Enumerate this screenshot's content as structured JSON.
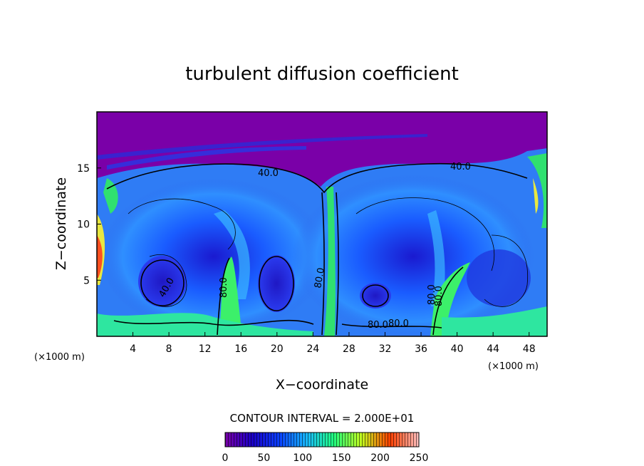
{
  "chart_data": {
    "type": "heatmap",
    "title": "turbulent diffusion coefficient",
    "xlabel": "X−coordinate",
    "ylabel": "Z−coordinate",
    "x_unit": "(×1000 m)",
    "x_unit_right": "(×1000 m)",
    "xlim": [
      0,
      50
    ],
    "ylim": [
      0,
      20
    ],
    "x_ticks": [
      4,
      8,
      12,
      16,
      20,
      24,
      28,
      32,
      36,
      40,
      44,
      48
    ],
    "y_ticks": [
      5,
      10,
      15
    ],
    "contour_interval_text": "CONTOUR INTERVAL = 2.000E+01",
    "contour_labels": [
      "40.0",
      "40.0",
      "40.0",
      "80.0",
      "80.0",
      "80.0",
      "80.0",
      "80.0",
      "80.0"
    ],
    "colorbar": {
      "min": 0,
      "max": 250,
      "ticks": [
        0,
        50,
        100,
        150,
        200,
        250
      ],
      "colors": [
        "#7a00a8",
        "#1a00c8",
        "#0a40ff",
        "#18b8ff",
        "#20ff80",
        "#c0ff20",
        "#ff4000",
        "#ffc0c0"
      ]
    },
    "background_value": 0,
    "grid": false
  }
}
